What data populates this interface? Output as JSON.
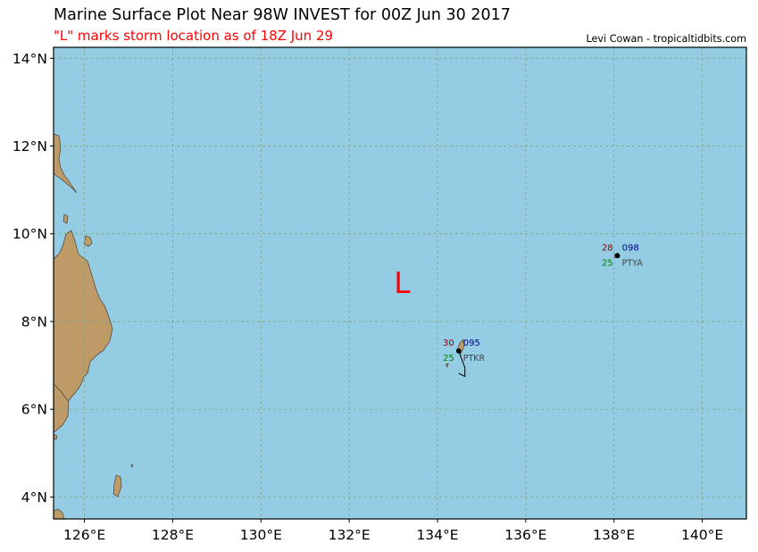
{
  "title": "Marine Surface Plot Near 98W INVEST for 00Z Jun 30 2017",
  "subtitle": "\"L\" marks storm location as of 18Z Jun 29",
  "credit": "Levi Cowan - tropicaltidbits.com",
  "colors": {
    "ocean": "#94cce4",
    "land": "#bd9a66",
    "title_red": "#ff0000",
    "pressure": "#00008b",
    "temperature": "#8b0000",
    "dewpoint": "#008000",
    "station_id": "#444444"
  },
  "map": {
    "lon_range": [
      125.3,
      141.0
    ],
    "lat_range": [
      3.5,
      14.25
    ],
    "lon_ticks": [
      {
        "value": 126,
        "label": "126°E"
      },
      {
        "value": 128,
        "label": "128°E"
      },
      {
        "value": 130,
        "label": "130°E"
      },
      {
        "value": 132,
        "label": "132°E"
      },
      {
        "value": 134,
        "label": "134°E"
      },
      {
        "value": 136,
        "label": "136°E"
      },
      {
        "value": 138,
        "label": "138°E"
      },
      {
        "value": 140,
        "label": "140°E"
      }
    ],
    "lat_ticks": [
      {
        "value": 4,
        "label": "4°N"
      },
      {
        "value": 6,
        "label": "6°N"
      },
      {
        "value": 8,
        "label": "8°N"
      },
      {
        "value": 10,
        "label": "10°N"
      },
      {
        "value": 12,
        "label": "12°N"
      },
      {
        "value": 14,
        "label": "14°N"
      }
    ],
    "grid": true
  },
  "storm_marker": {
    "label": "L",
    "lon": 133.2,
    "lat": 8.9
  },
  "stations": [
    {
      "id": "PTKR",
      "lon": 134.48,
      "lat": 7.33,
      "temperature": "30",
      "pressure": "095",
      "dewpoint": "25",
      "wind_barb": [
        [
          134.48,
          7.33
        ],
        [
          134.62,
          6.95
        ],
        [
          134.62,
          6.75
        ],
        [
          134.48,
          6.82
        ]
      ]
    },
    {
      "id": "PTYA",
      "lon": 138.08,
      "lat": 9.5,
      "temperature": "28",
      "pressure": "098",
      "dewpoint": "25",
      "wind_barb": []
    }
  ]
}
